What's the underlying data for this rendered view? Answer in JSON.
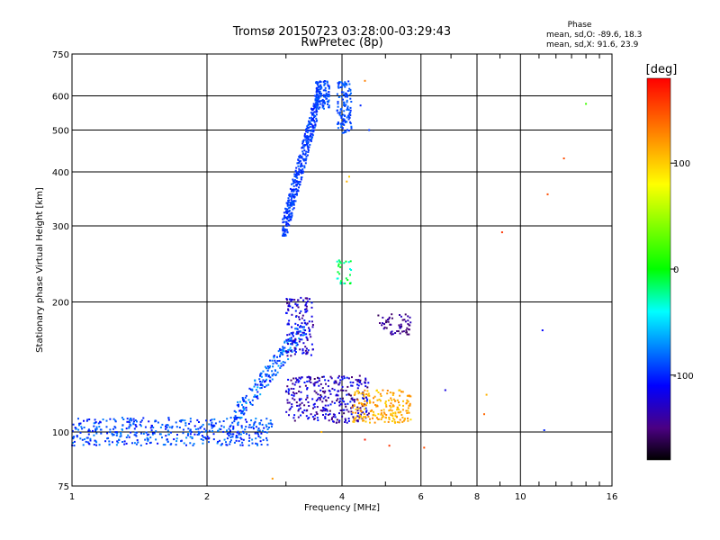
{
  "chart_data": {
    "type": "scatter",
    "title": "Tromsø 20150723 03:28:00-03:29:43",
    "subtitle": "RwPretec (8p)",
    "xlabel": "Frequency [MHz]",
    "ylabel": "Stationary phase Virtual Height [km]",
    "x_scale": "log",
    "y_scale": "log",
    "xlim": [
      1,
      16
    ],
    "ylim": [
      75,
      750
    ],
    "x_ticks": [
      1,
      2,
      4,
      6,
      8,
      10,
      16
    ],
    "y_ticks": [
      75,
      100,
      200,
      300,
      400,
      500,
      600,
      750
    ],
    "grid": true,
    "phase_box": {
      "title": "Phase",
      "line1": "mean, sd,O: -89.6, 18.3",
      "line2": "mean, sd,X: 91.6, 23.9"
    },
    "colorbar": {
      "label": "[deg]",
      "range": [
        -180,
        180
      ],
      "ticks": [
        100,
        0,
        -100
      ],
      "colors": [
        "#000000",
        "#4b0082",
        "#0000ff",
        "#00ffff",
        "#00ff00",
        "#ffff00",
        "#ff7f00",
        "#ff0000"
      ]
    },
    "clusters": [
      {
        "name": "e-region-trace",
        "x_range": [
          1.0,
          2.8
        ],
        "y_base": [
          93,
          108
        ],
        "phase": [
          -110,
          -70
        ],
        "count": 450
      },
      {
        "name": "e-region-rise",
        "x_range": [
          2.3,
          3.3
        ],
        "y_base": [
          108,
          175
        ],
        "phase": [
          -110,
          -60
        ],
        "count": 220
      },
      {
        "name": "f1-trace",
        "x_range": [
          3.0,
          3.45
        ],
        "y_base": [
          150,
          205
        ],
        "phase": [
          -150,
          -100
        ],
        "count": 130
      },
      {
        "name": "e-layer-dense",
        "x_range": [
          3.0,
          4.6
        ],
        "y_base": [
          105,
          135
        ],
        "phase": [
          -160,
          -100
        ],
        "count": 320
      },
      {
        "name": "x-mode-e",
        "x_range": [
          4.2,
          5.7
        ],
        "y_base": [
          105,
          125
        ],
        "phase": [
          95,
          130
        ],
        "count": 200
      },
      {
        "name": "f2-lower-trace",
        "x_range": [
          2.95,
          3.55
        ],
        "y_base": [
          285,
          600
        ],
        "phase": [
          -105,
          -85
        ],
        "count": 420
      },
      {
        "name": "f2-upper-trace",
        "x_range": [
          3.5,
          3.75
        ],
        "y_base": [
          560,
          650
        ],
        "phase": [
          -100,
          -80
        ],
        "count": 120
      },
      {
        "name": "f2-cusp",
        "x_range": [
          3.9,
          4.2
        ],
        "y_base": [
          490,
          650
        ],
        "phase": [
          -100,
          -80
        ],
        "count": 120
      },
      {
        "name": "scatter-high",
        "x_range": [
          3.9,
          4.2
        ],
        "y_base": [
          220,
          250
        ],
        "phase": [
          -40,
          0
        ],
        "count": 30
      },
      {
        "name": "x-mode-mid",
        "x_range": [
          4.8,
          5.7
        ],
        "y_base": [
          168,
          188
        ],
        "phase": [
          -160,
          -130
        ],
        "count": 60
      }
    ],
    "isolated_points": [
      {
        "x": 4.15,
        "y": 390,
        "phase": 100
      },
      {
        "x": 4.1,
        "y": 380,
        "phase": 110
      },
      {
        "x": 4.4,
        "y": 570,
        "phase": -100
      },
      {
        "x": 4.5,
        "y": 650,
        "phase": 130
      },
      {
        "x": 4.6,
        "y": 500,
        "phase": -95
      },
      {
        "x": 9.1,
        "y": 290,
        "phase": 160
      },
      {
        "x": 11.2,
        "y": 172,
        "phase": -110
      },
      {
        "x": 11.5,
        "y": 355,
        "phase": 150
      },
      {
        "x": 12.5,
        "y": 430,
        "phase": 150
      },
      {
        "x": 14.0,
        "y": 575,
        "phase": 20
      },
      {
        "x": 8.3,
        "y": 110,
        "phase": 140
      },
      {
        "x": 8.4,
        "y": 122,
        "phase": 110
      },
      {
        "x": 6.8,
        "y": 125,
        "phase": -120
      },
      {
        "x": 6.1,
        "y": 92,
        "phase": 150
      },
      {
        "x": 5.1,
        "y": 93,
        "phase": 160
      },
      {
        "x": 4.5,
        "y": 96,
        "phase": 170
      },
      {
        "x": 11.3,
        "y": 101,
        "phase": -100
      },
      {
        "x": 2.8,
        "y": 78,
        "phase": 120
      },
      {
        "x": 3.6,
        "y": 100,
        "phase": 110
      }
    ]
  }
}
